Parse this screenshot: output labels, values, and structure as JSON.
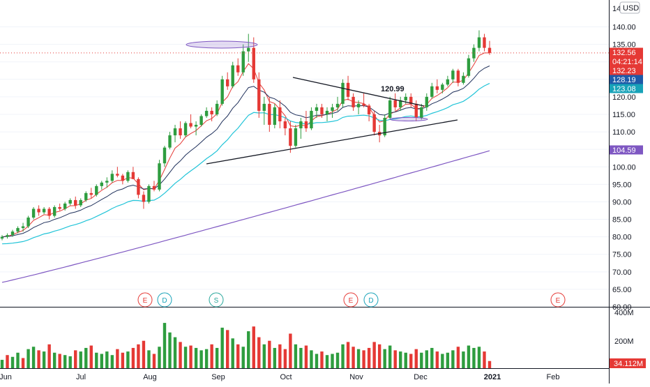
{
  "chart_data": {
    "type": "candlestick",
    "currency": "USD",
    "colors": {
      "up": "#26a69a",
      "up_candle": "#2e9d3f",
      "down": "#e53935",
      "ema_fast": "#e53935",
      "ema_mid": "#1e2f5a",
      "ema_slow": "#21c4d8",
      "sma_long": "#7e57c2",
      "last_price_line": "#e53935"
    },
    "y_axis": {
      "ticks": [
        "140.00",
        "135.00",
        "130.00",
        "125.00",
        "120.00",
        "115.00",
        "110.00",
        "105.00",
        "100.00",
        "95.00",
        "90.00",
        "85.00",
        "80.00",
        "75.00",
        "70.00",
        "65.00",
        "60.00"
      ],
      "top_label": "14",
      "range": [
        60,
        146
      ]
    },
    "volume_axis": {
      "ticks": [
        "400M",
        "200M"
      ]
    },
    "x_axis": {
      "labels": [
        "Jun",
        "Jul",
        "Aug",
        "Sep",
        "Oct",
        "Nov",
        "Dec",
        "2021",
        "Feb"
      ]
    },
    "price_labels": [
      {
        "text": "132.56",
        "style": "last"
      },
      {
        "text": "04:21:14",
        "style": "last"
      },
      {
        "text": "132.23",
        "style": "ema_fast"
      },
      {
        "text": "128.19",
        "style": "ema_mid"
      },
      {
        "text": "123.08",
        "style": "ema_slow"
      },
      {
        "text": "104.59",
        "style": "sma_long"
      }
    ],
    "volume_label": "34.112M",
    "annotation": "120.99",
    "events": [
      {
        "text": "E",
        "kind": "earnings"
      },
      {
        "text": "D",
        "kind": "dividend"
      },
      {
        "text": "S",
        "kind": "split"
      },
      {
        "text": "E",
        "kind": "earnings"
      },
      {
        "text": "D",
        "kind": "dividend"
      },
      {
        "text": "E",
        "kind": "earnings"
      }
    ],
    "ohlc_points": [
      [
        79.5,
        80.5,
        79,
        80,
        "up"
      ],
      [
        80,
        81,
        79.5,
        80.5,
        "up"
      ],
      [
        80.5,
        82,
        80,
        81.5,
        "up"
      ],
      [
        81.5,
        83,
        81,
        82.5,
        "up"
      ],
      [
        82.5,
        84,
        81.5,
        83,
        "up"
      ],
      [
        83,
        86,
        82.5,
        85.5,
        "up"
      ],
      [
        85.5,
        88.5,
        85,
        88,
        "up"
      ],
      [
        88,
        89,
        86,
        87,
        "down"
      ],
      [
        87,
        88.5,
        86.5,
        88,
        "up"
      ],
      [
        88,
        88.5,
        85,
        86,
        "down"
      ],
      [
        86,
        89,
        85.5,
        88.5,
        "up"
      ],
      [
        88.5,
        89.5,
        87.5,
        88,
        "down"
      ],
      [
        88,
        90,
        87.5,
        89.5,
        "up"
      ],
      [
        89.5,
        91,
        89,
        90.5,
        "up"
      ],
      [
        90.5,
        91.5,
        88,
        89,
        "down"
      ],
      [
        89,
        91,
        88.5,
        90.5,
        "up"
      ],
      [
        90.5,
        93,
        90,
        92.5,
        "up"
      ],
      [
        92.5,
        94,
        91,
        92,
        "down"
      ],
      [
        92,
        95,
        91.5,
        94.5,
        "up"
      ],
      [
        94.5,
        96,
        93.5,
        95.5,
        "up"
      ],
      [
        95.5,
        97,
        94,
        96,
        "up"
      ],
      [
        96,
        99,
        95.5,
        98,
        "up"
      ],
      [
        98,
        100,
        97,
        97.5,
        "down"
      ],
      [
        97.5,
        98,
        95,
        96,
        "down"
      ],
      [
        96,
        99,
        95.5,
        98.5,
        "up"
      ],
      [
        98.5,
        100,
        97,
        96.5,
        "down"
      ],
      [
        96.5,
        97,
        91,
        92,
        "down"
      ],
      [
        92,
        93,
        88,
        90,
        "down"
      ],
      [
        90,
        95,
        89.5,
        94.5,
        "up"
      ],
      [
        94.5,
        96,
        93,
        93.5,
        "down"
      ],
      [
        93.5,
        102,
        93,
        101,
        "up"
      ],
      [
        101,
        106,
        100,
        105.5,
        "up"
      ],
      [
        105.5,
        110,
        105,
        109,
        "up"
      ],
      [
        109,
        112,
        107,
        111,
        "up"
      ],
      [
        111,
        113,
        108,
        109,
        "down"
      ],
      [
        109,
        113,
        108.5,
        112.5,
        "up"
      ],
      [
        112.5,
        115,
        111,
        111.5,
        "down"
      ],
      [
        111.5,
        113,
        109,
        112,
        "up"
      ],
      [
        112,
        115,
        111.5,
        114.5,
        "up"
      ],
      [
        114.5,
        117,
        114,
        116,
        "up"
      ],
      [
        116,
        117,
        113,
        115,
        "down"
      ],
      [
        115,
        119,
        114.5,
        118,
        "up"
      ],
      [
        118,
        126,
        117.5,
        125,
        "up"
      ],
      [
        125,
        127,
        122,
        123,
        "down"
      ],
      [
        123,
        130,
        122.5,
        129,
        "up"
      ],
      [
        129,
        131,
        126,
        127,
        "down"
      ],
      [
        127,
        135,
        126,
        133,
        "up"
      ],
      [
        133,
        138,
        130,
        134,
        "up"
      ],
      [
        134,
        137,
        124,
        125,
        "down"
      ],
      [
        125,
        127,
        114,
        116,
        "down"
      ],
      [
        116,
        120,
        112,
        118,
        "up"
      ],
      [
        118,
        120,
        110,
        112,
        "down"
      ],
      [
        112,
        118,
        111,
        117,
        "up"
      ],
      [
        117,
        119,
        111,
        113,
        "down"
      ],
      [
        113,
        114,
        109,
        111,
        "down"
      ],
      [
        111,
        113,
        104,
        106,
        "down"
      ],
      [
        106,
        112,
        105.5,
        111,
        "up"
      ],
      [
        111,
        114,
        108,
        113,
        "up"
      ],
      [
        113,
        116,
        110,
        111,
        "down"
      ],
      [
        111,
        117,
        110.5,
        116,
        "up"
      ],
      [
        116,
        118,
        114,
        117,
        "up"
      ],
      [
        117,
        118,
        114,
        115,
        "down"
      ],
      [
        115,
        117,
        113,
        116,
        "up"
      ],
      [
        116,
        118,
        114,
        117,
        "up"
      ],
      [
        117,
        120,
        116,
        118,
        "up"
      ],
      [
        118,
        125,
        117,
        124,
        "up"
      ],
      [
        124,
        126,
        119,
        120,
        "down"
      ],
      [
        120,
        121,
        116,
        117,
        "down"
      ],
      [
        117,
        119,
        115,
        118,
        "up"
      ],
      [
        118,
        121,
        117,
        117.5,
        "down"
      ],
      [
        117.5,
        118,
        113,
        115,
        "down"
      ],
      [
        115,
        116,
        109,
        110,
        "down"
      ],
      [
        110,
        112,
        107,
        109,
        "down"
      ],
      [
        109,
        115,
        108.5,
        114,
        "up"
      ],
      [
        114,
        120,
        113.5,
        119,
        "up"
      ],
      [
        119,
        121,
        116,
        117,
        "down"
      ],
      [
        117,
        120,
        116,
        119,
        "up"
      ],
      [
        119,
        121,
        118,
        120,
        "up"
      ],
      [
        120,
        121,
        117,
        118,
        "down"
      ],
      [
        118,
        119,
        113,
        114,
        "down"
      ],
      [
        114,
        118,
        113.5,
        117,
        "up"
      ],
      [
        117,
        121,
        116,
        120,
        "up"
      ],
      [
        120,
        124,
        119.5,
        123,
        "up"
      ],
      [
        123,
        125,
        121,
        122,
        "down"
      ],
      [
        122,
        124,
        121,
        123.5,
        "up"
      ],
      [
        123.5,
        126,
        123,
        125,
        "up"
      ],
      [
        125,
        128,
        124,
        127.5,
        "up"
      ],
      [
        127.5,
        128,
        123,
        124,
        "down"
      ],
      [
        124,
        127,
        123.5,
        126,
        "up"
      ],
      [
        126,
        132,
        125.5,
        131,
        "up"
      ],
      [
        131,
        135,
        130,
        134,
        "up"
      ],
      [
        134,
        139,
        133,
        137,
        "up"
      ],
      [
        137,
        138,
        133,
        134,
        "down"
      ],
      [
        134,
        136,
        132,
        132.56,
        "down"
      ]
    ],
    "volume_points": [
      [
        70,
        "up"
      ],
      [
        110,
        "down"
      ],
      [
        95,
        "up"
      ],
      [
        130,
        "up"
      ],
      [
        85,
        "down"
      ],
      [
        160,
        "up"
      ],
      [
        180,
        "up"
      ],
      [
        150,
        "down"
      ],
      [
        140,
        "up"
      ],
      [
        200,
        "down"
      ],
      [
        130,
        "up"
      ],
      [
        120,
        "down"
      ],
      [
        110,
        "up"
      ],
      [
        100,
        "up"
      ],
      [
        150,
        "down"
      ],
      [
        140,
        "up"
      ],
      [
        170,
        "up"
      ],
      [
        190,
        "down"
      ],
      [
        130,
        "up"
      ],
      [
        120,
        "up"
      ],
      [
        140,
        "up"
      ],
      [
        110,
        "up"
      ],
      [
        160,
        "down"
      ],
      [
        130,
        "down"
      ],
      [
        140,
        "up"
      ],
      [
        170,
        "down"
      ],
      [
        200,
        "down"
      ],
      [
        230,
        "down"
      ],
      [
        150,
        "up"
      ],
      [
        120,
        "down"
      ],
      [
        180,
        "up"
      ],
      [
        380,
        "up"
      ],
      [
        300,
        "up"
      ],
      [
        260,
        "up"
      ],
      [
        220,
        "down"
      ],
      [
        180,
        "up"
      ],
      [
        190,
        "down"
      ],
      [
        170,
        "up"
      ],
      [
        150,
        "up"
      ],
      [
        160,
        "up"
      ],
      [
        200,
        "down"
      ],
      [
        170,
        "up"
      ],
      [
        340,
        "up"
      ],
      [
        320,
        "down"
      ],
      [
        250,
        "up"
      ],
      [
        200,
        "down"
      ],
      [
        180,
        "up"
      ],
      [
        310,
        "up"
      ],
      [
        350,
        "down"
      ],
      [
        260,
        "down"
      ],
      [
        200,
        "up"
      ],
      [
        230,
        "down"
      ],
      [
        170,
        "up"
      ],
      [
        200,
        "down"
      ],
      [
        160,
        "down"
      ],
      [
        290,
        "down"
      ],
      [
        200,
        "up"
      ],
      [
        170,
        "up"
      ],
      [
        190,
        "down"
      ],
      [
        150,
        "up"
      ],
      [
        120,
        "up"
      ],
      [
        140,
        "down"
      ],
      [
        110,
        "up"
      ],
      [
        120,
        "up"
      ],
      [
        130,
        "up"
      ],
      [
        200,
        "up"
      ],
      [
        220,
        "down"
      ],
      [
        180,
        "down"
      ],
      [
        160,
        "up"
      ],
      [
        150,
        "down"
      ],
      [
        170,
        "down"
      ],
      [
        220,
        "down"
      ],
      [
        200,
        "down"
      ],
      [
        160,
        "up"
      ],
      [
        190,
        "up"
      ],
      [
        150,
        "down"
      ],
      [
        140,
        "up"
      ],
      [
        130,
        "up"
      ],
      [
        120,
        "down"
      ],
      [
        160,
        "down"
      ],
      [
        130,
        "up"
      ],
      [
        150,
        "up"
      ],
      [
        170,
        "up"
      ],
      [
        140,
        "down"
      ],
      [
        120,
        "up"
      ],
      [
        130,
        "up"
      ],
      [
        150,
        "up"
      ],
      [
        180,
        "down"
      ],
      [
        140,
        "up"
      ],
      [
        190,
        "up"
      ],
      [
        170,
        "up"
      ],
      [
        180,
        "up"
      ],
      [
        140,
        "down"
      ],
      [
        60,
        "down"
      ]
    ]
  }
}
